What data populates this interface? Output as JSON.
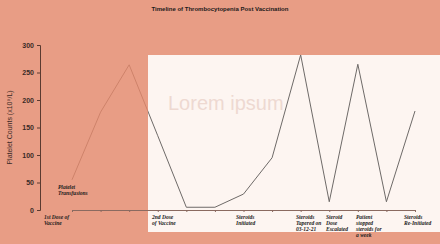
{
  "chart_data": {
    "type": "line",
    "title": "Timeline of Thrombocytopenia Post Vaccination",
    "y_label": "Platelet Counts (x10⁹/L)",
    "watermark": "Lorem ipsum",
    "categories": [
      null,
      null,
      null,
      null,
      null,
      null,
      null,
      null,
      null,
      null,
      null,
      null,
      null
    ],
    "series": [
      {
        "color": "#6e6a68",
        "values": [
          55,
          178,
          264,
          135,
          5,
          5,
          29,
          95,
          282,
          15,
          265,
          15,
          180
        ]
      }
    ],
    "ylim": [
      0,
      300
    ],
    "yticks": [
      0,
      50,
      100,
      150,
      200,
      250,
      300
    ],
    "grid": false,
    "annotations": [
      "1st Dose of Vaccine",
      "Platelet Transfusions",
      "2nd Dose of Vaccine",
      "Steroids Initiated",
      "Steroids Tapered on 03-12-21",
      "Steroid Dose Escalated",
      "Patient stopped steroids for a week",
      "Steroids Re-Initiated"
    ]
  }
}
